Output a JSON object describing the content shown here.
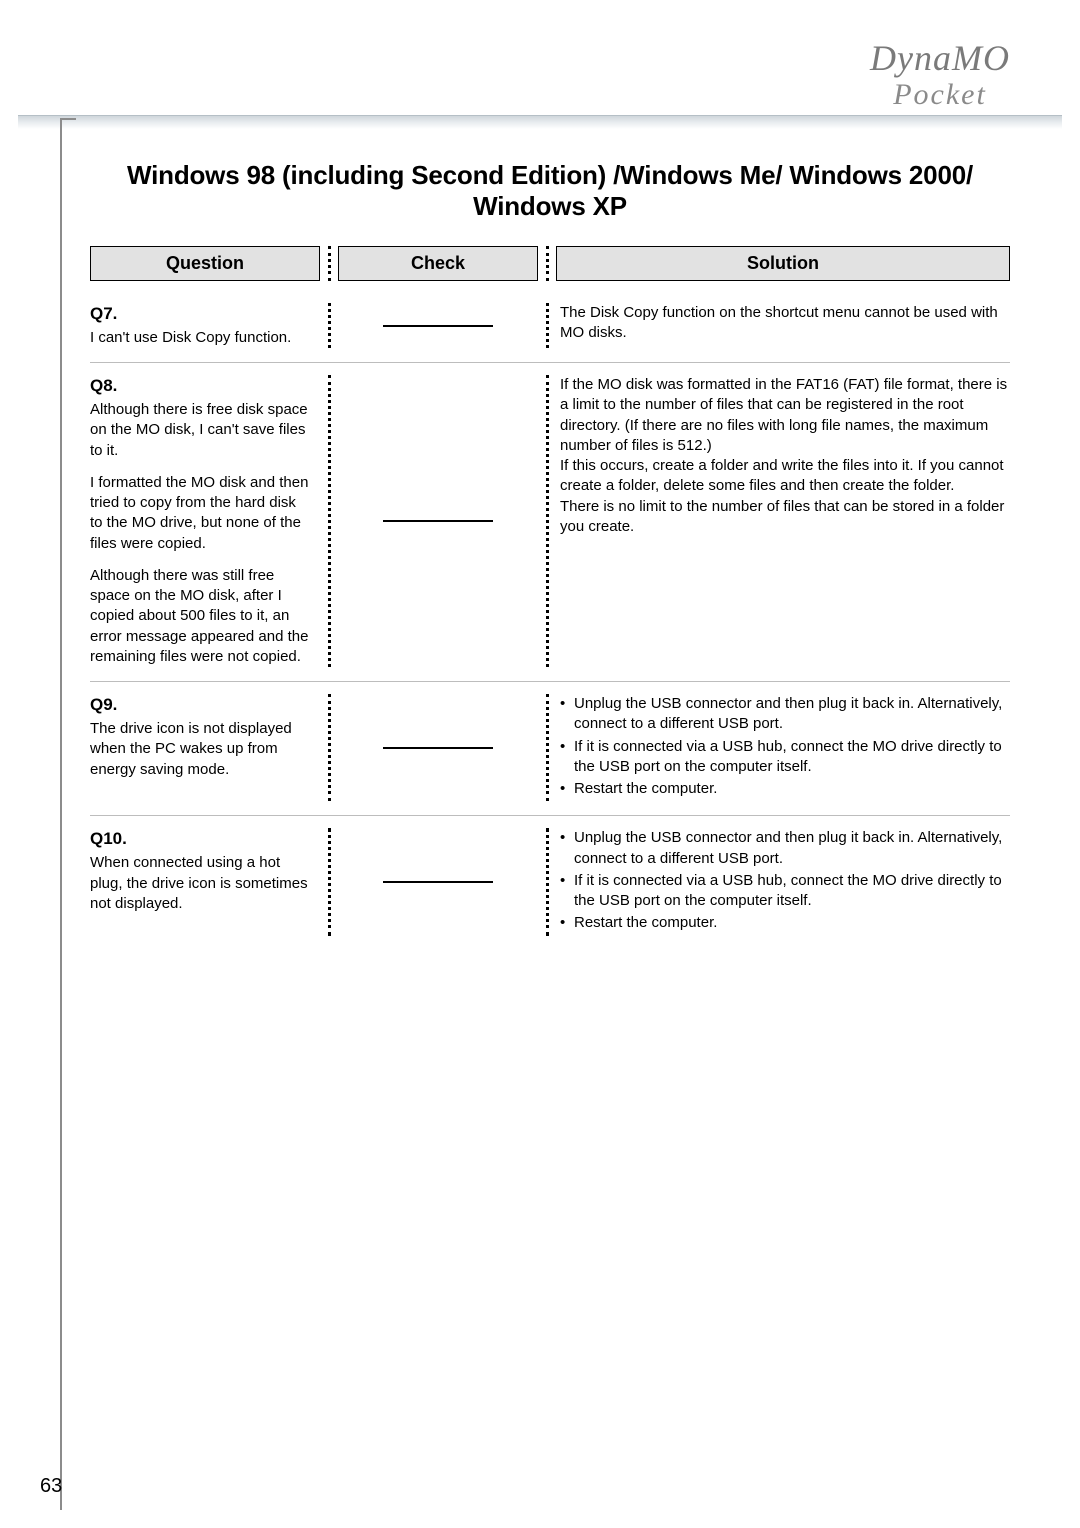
{
  "brand": {
    "line1": "DynaMO",
    "line2": "Pocket"
  },
  "title": "Windows 98 (including Second Edition) /Windows Me/ Windows 2000/ Windows XP",
  "headers": {
    "question": "Question",
    "check": "Check",
    "solution": "Solution"
  },
  "rows": [
    {
      "qnum": "Q7.",
      "question_paras": [
        "I can't use Disk Copy function."
      ],
      "check": "dash",
      "solution_paras": [
        "The Disk Copy function on the shortcut menu cannot be used with MO disks."
      ],
      "solution_bullets": []
    },
    {
      "qnum": "Q8.",
      "question_paras": [
        "Although there is free disk space on the MO disk, I can't save files to it.",
        "I formatted the MO disk and then tried to copy from the hard disk to the MO drive, but none of the files were copied.",
        "Although there was still free space on the MO disk, after I copied about 500 files to it, an error message appeared and the remaining files were not copied."
      ],
      "check": "dash",
      "solution_paras": [
        "If the MO disk was formatted in the FAT16 (FAT) file format, there is a limit to the number of files that can be registered in the root directory. (If there are no files with long file names, the maximum number of files is 512.)",
        "If this occurs, create a folder and write the files into it.  If you cannot create a folder, delete some files and then create the folder.",
        "There is no limit to the number of files that can be stored in a folder you create."
      ],
      "solution_bullets": []
    },
    {
      "qnum": "Q9.",
      "question_paras": [
        "The drive icon is not displayed when the PC wakes up from energy saving mode."
      ],
      "check": "dash",
      "solution_paras": [],
      "solution_bullets": [
        {
          "text": "Unplug the USB connector and then plug it back in. Alternatively, connect to a different USB port.",
          "sub": false
        },
        {
          "text": "If it is connected via a USB hub, connect the MO drive directly to the USB port on the computer itself.",
          "sub": false
        },
        {
          "text": "Restart the computer.",
          "sub": false
        }
      ]
    },
    {
      "qnum": "Q10.",
      "question_paras": [
        "When connected using a hot plug, the drive icon is sometimes not displayed."
      ],
      "check": "dash",
      "solution_paras": [],
      "solution_bullets": [
        {
          "text": "Unplug the USB connector and then plug it back in. Alternatively, connect to a different USB port.",
          "sub": false
        },
        {
          "text": "If it is connected via a USB hub, connect the MO drive directly to the USB port on the computer itself.",
          "sub": false
        },
        {
          "text": "Restart the computer.",
          "sub": false
        }
      ]
    }
  ],
  "page_number": "63",
  "colors": {
    "header_bg": "#e2e2e2",
    "brand_gray": "#7a7a7a",
    "rule_gray": "#bdbdbd"
  },
  "fontsizes": {
    "title": 26,
    "header": 18,
    "body": 15,
    "qnum": 17,
    "brand1": 36,
    "brand2": 30,
    "pagenum": 20
  }
}
